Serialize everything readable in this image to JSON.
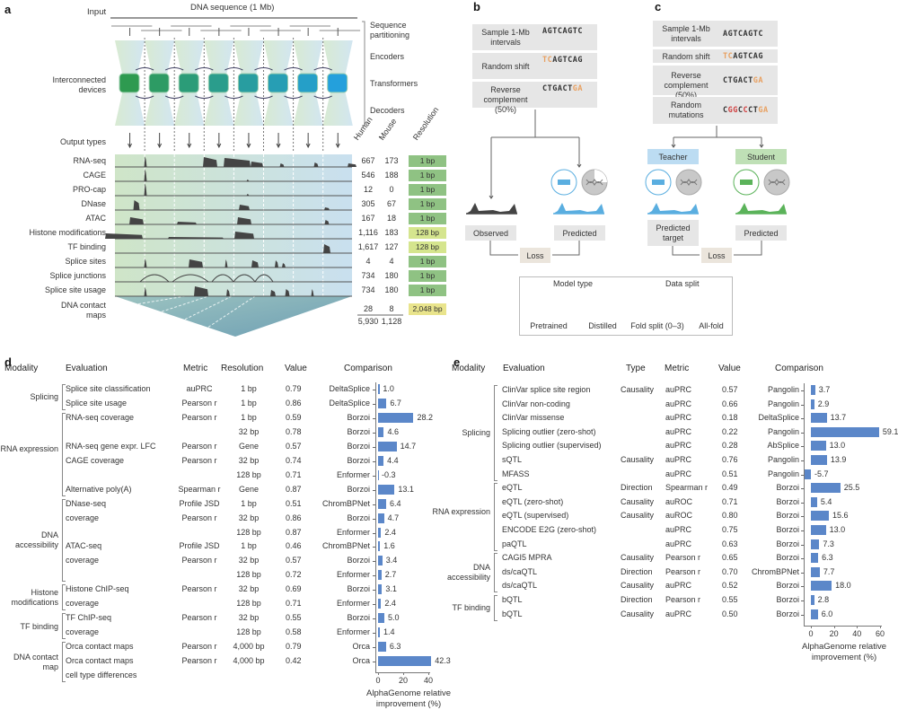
{
  "panel_a": {
    "label": "a",
    "input_label": "Input",
    "dna_label": "DNA sequence (1 Mb)",
    "stage_labels": [
      "Sequence partitioning",
      "Encoders",
      "Transformers",
      "Decoders"
    ],
    "devices_label": "Interconnected devices",
    "output_types_label": "Output types",
    "col_headers": [
      "Human",
      "Mouse",
      "Resolution"
    ],
    "tracks": [
      {
        "name": "RNA-seq",
        "human": "667",
        "mouse": "173",
        "resolution": "1 bp"
      },
      {
        "name": "CAGE",
        "human": "546",
        "mouse": "188",
        "resolution": "1 bp"
      },
      {
        "name": "PRO-cap",
        "human": "12",
        "mouse": "0",
        "resolution": "1 bp"
      },
      {
        "name": "DNase",
        "human": "305",
        "mouse": "67",
        "resolution": "1 bp"
      },
      {
        "name": "ATAC",
        "human": "167",
        "mouse": "18",
        "resolution": "1 bp"
      },
      {
        "name": "Histone modifications",
        "human": "1,116",
        "mouse": "183",
        "resolution": "128 bp"
      },
      {
        "name": "TF binding",
        "human": "1,617",
        "mouse": "127",
        "resolution": "128 bp"
      },
      {
        "name": "Splice sites",
        "human": "4",
        "mouse": "4",
        "resolution": "1 bp"
      },
      {
        "name": "Splice junctions",
        "human": "734",
        "mouse": "180",
        "resolution": "1 bp"
      },
      {
        "name": "Splice site usage",
        "human": "734",
        "mouse": "180",
        "resolution": "1 bp"
      },
      {
        "name": "DNA contact maps",
        "human": "28",
        "mouse": "8",
        "resolution": "2,048 bp"
      }
    ],
    "totals": {
      "human": "5,930",
      "mouse": "1,128"
    },
    "colors": {
      "res_1bp": "#8fc283",
      "res_128bp": "#d5e58e",
      "res_2048bp": "#e9e48c"
    }
  },
  "panel_b": {
    "label": "b",
    "steps": [
      {
        "label": "Sample 1-Mb intervals",
        "seq": [
          [
            "AGTCAGTC",
            ""
          ]
        ]
      },
      {
        "label": "Random shift",
        "seq": [
          [
            "TC",
            "or"
          ],
          [
            "AGTCAG",
            ""
          ]
        ]
      },
      {
        "label": "Reverse complement (50%)",
        "seq": [
          [
            "CTGACT",
            ""
          ],
          [
            "GA",
            "or"
          ]
        ]
      }
    ],
    "observed": "Observed",
    "predicted": "Predicted",
    "loss": "Loss"
  },
  "panel_c": {
    "label": "c",
    "steps": [
      {
        "label": "Sample 1-Mb intervals",
        "seq": [
          [
            "AGTCAGTC",
            ""
          ]
        ]
      },
      {
        "label": "Random shift",
        "seq": [
          [
            "TC",
            "or"
          ],
          [
            "AGTCAG",
            ""
          ]
        ]
      },
      {
        "label": "Reverse complement (50%)",
        "seq": [
          [
            "CTGACT",
            ""
          ],
          [
            "GA",
            "or"
          ]
        ]
      },
      {
        "label": "Random mutations",
        "seq": [
          [
            "C",
            ""
          ],
          [
            "GG",
            "rd"
          ],
          [
            "C",
            ""
          ],
          [
            "C",
            "rd"
          ],
          [
            "CT",
            ""
          ],
          [
            "GA",
            "or"
          ]
        ]
      }
    ],
    "teacher": "Teacher",
    "student": "Student",
    "predicted_target": "Predicted target",
    "predicted": "Predicted",
    "loss": "Loss"
  },
  "legend": {
    "model_type": "Model type",
    "data_split": "Data split",
    "items": [
      "Pretrained",
      "Distilled",
      "Fold split (0–3)",
      "All-fold"
    ]
  },
  "panel_d": {
    "label": "d",
    "headers": [
      "Modality",
      "Evaluation",
      "Metric",
      "Resolution",
      "Value",
      "Comparison"
    ],
    "groups": [
      {
        "modality": "Splicing",
        "rows": [
          0,
          1
        ]
      },
      {
        "modality": "RNA expression",
        "rows": [
          2,
          7
        ]
      },
      {
        "modality": "DNA accessibility",
        "rows": [
          8,
          13
        ]
      },
      {
        "modality": "Histone modifications",
        "rows": [
          14,
          15
        ]
      },
      {
        "modality": "TF binding",
        "rows": [
          16,
          17
        ]
      },
      {
        "modality": "DNA contact map",
        "rows": [
          18,
          20
        ]
      }
    ],
    "rows": [
      {
        "evaluation": "Splice site classification",
        "metric": "auPRC",
        "resolution": "1 bp",
        "value": "0.79",
        "comparison": "DeltaSplice"
      },
      {
        "evaluation": "Splice site usage",
        "metric": "Pearson r",
        "resolution": "1 bp",
        "value": "0.86",
        "comparison": "DeltaSplice"
      },
      {
        "evaluation": "RNA-seq coverage",
        "metric": "Pearson r",
        "resolution": "1 bp",
        "value": "0.59",
        "comparison": "Borzoi"
      },
      {
        "evaluation": "",
        "metric": "",
        "resolution": "32 bp",
        "value": "0.78",
        "comparison": "Borzoi"
      },
      {
        "evaluation": "RNA-seq gene expr. LFC",
        "metric": "Pearson r",
        "resolution": "Gene",
        "value": "0.57",
        "comparison": "Borzoi"
      },
      {
        "evaluation": "CAGE coverage",
        "metric": "Pearson r",
        "resolution": "32 bp",
        "value": "0.74",
        "comparison": "Borzoi"
      },
      {
        "evaluation": "",
        "metric": "",
        "resolution": "128 bp",
        "value": "0.71",
        "comparison": "Enformer"
      },
      {
        "evaluation": "Alternative poly(A)",
        "metric": "Spearman r",
        "resolution": "Gene",
        "value": "0.87",
        "comparison": "Borzoi"
      },
      {
        "evaluation": "DNase-seq",
        "metric": "Profile JSD",
        "resolution": "1 bp",
        "value": "0.51",
        "comparison": "ChromBPNet"
      },
      {
        "evaluation": "coverage",
        "metric": "Pearson r",
        "resolution": "32 bp",
        "value": "0.86",
        "comparison": "Borzoi"
      },
      {
        "evaluation": "",
        "metric": "",
        "resolution": "128 bp",
        "value": "0.87",
        "comparison": "Enformer"
      },
      {
        "evaluation": "ATAC-seq",
        "metric": "Profile JSD",
        "resolution": "1 bp",
        "value": "0.46",
        "comparison": "ChromBPNet"
      },
      {
        "evaluation": "coverage",
        "metric": "Pearson r",
        "resolution": "32 bp",
        "value": "0.57",
        "comparison": "Borzoi"
      },
      {
        "evaluation": "",
        "metric": "",
        "resolution": "128 bp",
        "value": "0.72",
        "comparison": "Enformer"
      },
      {
        "evaluation": "Histone ChIP-seq",
        "metric": "Pearson r",
        "resolution": "32 bp",
        "value": "0.69",
        "comparison": "Borzoi"
      },
      {
        "evaluation": "coverage",
        "metric": "",
        "resolution": "128 bp",
        "value": "0.71",
        "comparison": "Enformer"
      },
      {
        "evaluation": "TF ChIP-seq",
        "metric": "Pearson r",
        "resolution": "32 bp",
        "value": "0.55",
        "comparison": "Borzoi"
      },
      {
        "evaluation": "coverage",
        "metric": "",
        "resolution": "128 bp",
        "value": "0.58",
        "comparison": "Enformer"
      },
      {
        "evaluation": "Orca contact maps",
        "metric": "Pearson r",
        "resolution": "4,000 bp",
        "value": "0.79",
        "comparison": "Orca"
      },
      {
        "evaluation": "Orca contact maps",
        "metric": "Pearson r",
        "resolution": "4,000 bp",
        "value": "0.42",
        "comparison": "Orca"
      },
      {
        "evaluation": "cell type differences",
        "metric": "",
        "resolution": "",
        "value": "",
        "comparison": ""
      }
    ]
  },
  "panel_e": {
    "label": "e",
    "headers": [
      "Modality",
      "Evaluation",
      "Type",
      "Metric",
      "Value",
      "Comparison"
    ],
    "groups": [
      {
        "modality": "Splicing",
        "rows": [
          0,
          6
        ]
      },
      {
        "modality": "RNA expression",
        "rows": [
          7,
          11
        ]
      },
      {
        "modality": "DNA accessibility",
        "rows": [
          12,
          14
        ]
      },
      {
        "modality": "TF binding",
        "rows": [
          15,
          16
        ]
      }
    ],
    "rows": [
      {
        "evaluation": "ClinVar splice site region",
        "type": "Causality",
        "metric": "auPRC",
        "value": "0.57",
        "comparison": "Pangolin"
      },
      {
        "evaluation": "ClinVar non-coding",
        "type": "",
        "metric": "auPRC",
        "value": "0.66",
        "comparison": "Pangolin"
      },
      {
        "evaluation": "ClinVar missense",
        "type": "",
        "metric": "auPRC",
        "value": "0.18",
        "comparison": "DeltaSplice"
      },
      {
        "evaluation": "Splicing outlier (zero-shot)",
        "type": "",
        "metric": "auPRC",
        "value": "0.22",
        "comparison": "Pangolin"
      },
      {
        "evaluation": "Splicing outlier (supervised)",
        "type": "",
        "metric": "auPRC",
        "value": "0.28",
        "comparison": "AbSplice"
      },
      {
        "evaluation": "sQTL",
        "type": "Causality",
        "metric": "auPRC",
        "value": "0.76",
        "comparison": "Pangolin"
      },
      {
        "evaluation": "MFASS",
        "type": "",
        "metric": "auPRC",
        "value": "0.51",
        "comparison": "Pangolin"
      },
      {
        "evaluation": "eQTL",
        "type": "Direction",
        "metric": "Spearman r",
        "value": "0.49",
        "comparison": "Borzoi"
      },
      {
        "evaluation": "eQTL (zero-shot)",
        "type": "Causality",
        "metric": "auROC",
        "value": "0.71",
        "comparison": "Borzoi"
      },
      {
        "evaluation": "eQTL (supervised)",
        "type": "Causality",
        "metric": "auROC",
        "value": "0.80",
        "comparison": "Borzoi"
      },
      {
        "evaluation": "ENCODE E2G (zero-shot)",
        "type": "",
        "metric": "auPRC",
        "value": "0.75",
        "comparison": "Borzoi"
      },
      {
        "evaluation": "paQTL",
        "type": "",
        "metric": "auPRC",
        "value": "0.63",
        "comparison": "Borzoi"
      },
      {
        "evaluation": "CAGI5 MPRA",
        "type": "Causality",
        "metric": "Pearson r",
        "value": "0.65",
        "comparison": "Borzoi"
      },
      {
        "evaluation": "ds/caQTL",
        "type": "Direction",
        "metric": "Pearson r",
        "value": "0.70",
        "comparison": "ChromBPNet"
      },
      {
        "evaluation": "ds/caQTL",
        "type": "Causality",
        "metric": "auPRC",
        "value": "0.52",
        "comparison": "Borzoi"
      },
      {
        "evaluation": "bQTL",
        "type": "Direction",
        "metric": "Pearson r",
        "value": "0.55",
        "comparison": "Borzoi"
      },
      {
        "evaluation": "bQTL",
        "type": "Causality",
        "metric": "auPRC",
        "value": "0.50",
        "comparison": "Borzoi"
      }
    ]
  },
  "chart_data": [
    {
      "type": "bar",
      "orientation": "horizontal",
      "xlabel": "AlphaGenome relative improvement (%)",
      "xlim": [
        -2,
        48
      ],
      "xticks": [
        "0",
        "20",
        "40"
      ],
      "values": [
        1.0,
        6.7,
        28.2,
        4.6,
        14.7,
        4.4,
        -0.3,
        13.1,
        6.4,
        4.7,
        2.4,
        1.6,
        3.4,
        2.7,
        3.1,
        2.4,
        5.0,
        1.4,
        6.3,
        42.3
      ],
      "labels": [
        "1.0",
        "6.7",
        "28.2",
        "4.6",
        "14.7",
        "4.4",
        "-0.3",
        "13.1",
        "6.4",
        "4.7",
        "2.4",
        "1.6",
        "3.4",
        "2.7",
        "3.1",
        "2.4",
        "5.0",
        "1.4",
        "6.3",
        "42.3"
      ],
      "color": "#5b87c9"
    },
    {
      "type": "bar",
      "orientation": "horizontal",
      "xlabel": "AlphaGenome relative improvement (%)",
      "xlim": [
        -7,
        62
      ],
      "xticks": [
        "0",
        "20",
        "40",
        "60"
      ],
      "values": [
        3.7,
        2.9,
        13.7,
        59.1,
        13.0,
        13.9,
        -5.7,
        25.5,
        5.4,
        15.6,
        13.0,
        7.3,
        6.3,
        7.7,
        18.0,
        2.8,
        6.0
      ],
      "labels": [
        "3.7",
        "2.9",
        "13.7",
        "59.1",
        "13.0",
        "13.9",
        "-5.7",
        "25.5",
        "5.4",
        "15.6",
        "13.0",
        "7.3",
        "6.3",
        "7.7",
        "18.0",
        "2.8",
        "6.0"
      ],
      "color": "#5b87c9"
    }
  ]
}
